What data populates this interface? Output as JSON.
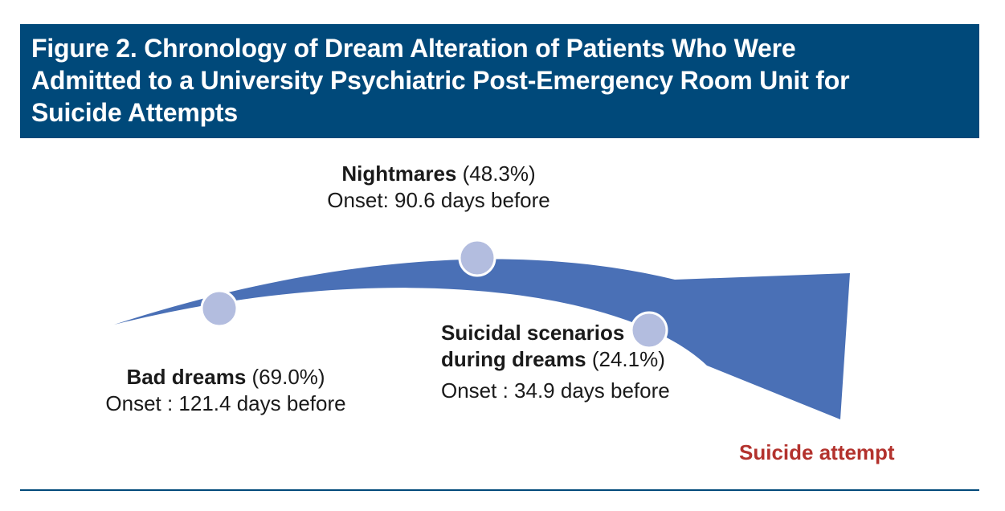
{
  "title": "Figure 2. Chronology of Dream Alteration of Patients Who Were Admitted to a University Psychiatric Post-Emergency Room Unit for Suicide Attempts",
  "title_lines": [
    "Figure 2. Chronology of Dream Alteration of Patients Who Were",
    "Admitted to a University Psychiatric Post-Emergency Room Unit for",
    "Suicide Attempts"
  ],
  "events": {
    "bad_dreams": {
      "name": "Bad dreams",
      "percent": "(69.0%)",
      "onset": "Onset : 121.4 days before"
    },
    "nightmares": {
      "name": "Nightmares",
      "percent": "(48.3%)",
      "onset": "Onset: 90.6 days before"
    },
    "suicidal_scenarios": {
      "name_line1": "Suicidal scenarios",
      "name_line2": "during dreams",
      "percent": "(24.1%)",
      "onset": "Onset : 34.9 days before"
    }
  },
  "endpoint": "Suicide attempt",
  "colors": {
    "title_bar": "#00497a",
    "arrow": "#4a70b6",
    "marker": "#b3bddf",
    "endpoint_text": "#b3322d"
  }
}
